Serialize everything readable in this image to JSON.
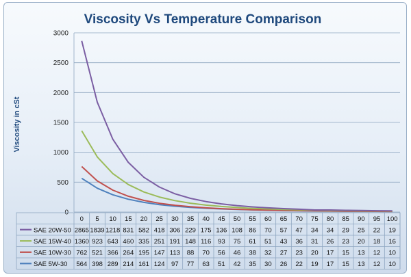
{
  "chart_data": {
    "type": "line",
    "title": "Viscosity Vs Temperature Comparison",
    "ylabel": "Viscosity in cSt",
    "xlabel": "",
    "ylim": [
      0,
      3000
    ],
    "yticks": [
      0,
      500,
      1000,
      1500,
      2000,
      2500,
      3000
    ],
    "grid": true,
    "legend": "table-below",
    "categories": [
      "0",
      "5",
      "10",
      "15",
      "20",
      "25",
      "30",
      "35",
      "40",
      "45",
      "50",
      "55",
      "60",
      "65",
      "70",
      "75",
      "80",
      "85",
      "90",
      "95",
      "100"
    ],
    "series": [
      {
        "name": "SAE 20W-50",
        "color": "#7b5ea3",
        "values": [
          2865,
          1839,
          1218,
          831,
          582,
          418,
          306,
          229,
          175,
          136,
          108,
          86,
          70,
          57,
          47,
          34,
          34,
          29,
          25,
          22,
          19
        ]
      },
      {
        "name": "SAE 15W-40",
        "color": "#9bbb59",
        "values": [
          1360,
          923,
          643,
          460,
          335,
          251,
          191,
          148,
          116,
          93,
          75,
          61,
          51,
          43,
          36,
          31,
          26,
          23,
          20,
          18,
          16
        ]
      },
      {
        "name": "SAE 10W-30",
        "color": "#c0504d",
        "values": [
          762,
          521,
          366,
          264,
          195,
          147,
          113,
          88,
          70,
          56,
          46,
          38,
          32,
          27,
          23,
          20,
          17,
          15,
          13,
          12,
          10
        ]
      },
      {
        "name": "SAE 5W-30",
        "color": "#4f81bd",
        "values": [
          564,
          398,
          289,
          214,
          161,
          124,
          97,
          77,
          63,
          51,
          42,
          35,
          30,
          26,
          22,
          19,
          17,
          15,
          13,
          12,
          10
        ]
      }
    ]
  }
}
